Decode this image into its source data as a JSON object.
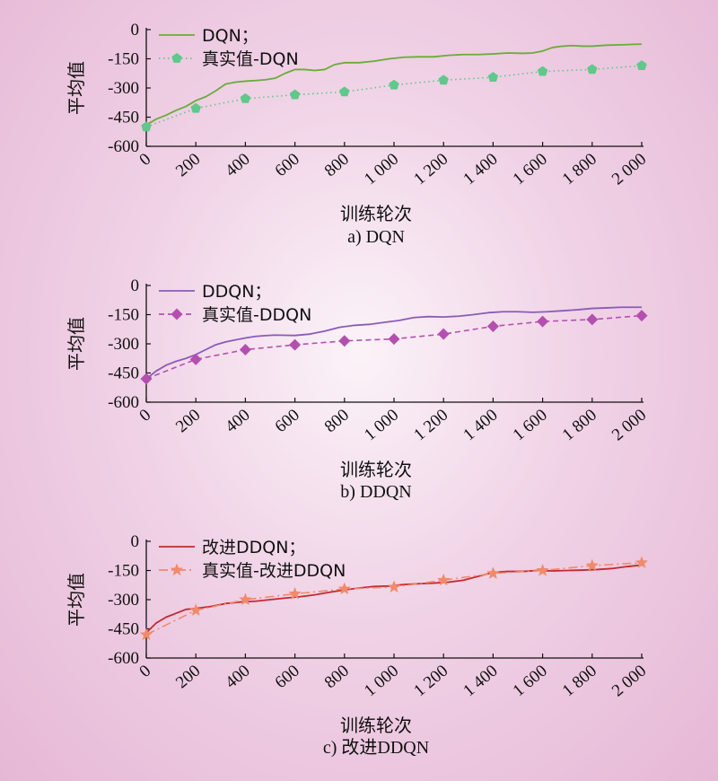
{
  "chart_data": [
    {
      "type": "line",
      "caption": "a) DQN",
      "xlabel": "训练轮次",
      "ylabel": "平均值",
      "xlim": [
        0,
        2000
      ],
      "ylim": [
        -600,
        0
      ],
      "xticks": [
        0,
        200,
        400,
        600,
        800,
        1000,
        1200,
        1400,
        1600,
        1800,
        2000
      ],
      "xtick_labels": [
        "0",
        "200",
        "400",
        "600",
        "800",
        "1 000",
        "1 200",
        "1 400",
        "1 600",
        "1 800",
        "2 000"
      ],
      "yticks": [
        0,
        -150,
        -300,
        -450,
        -600
      ],
      "ytick_labels": [
        "0",
        "-150",
        "-300",
        "-450",
        "-600"
      ],
      "legend_position": "top-left",
      "series": [
        {
          "name": "DQN；",
          "color": "#6aac38",
          "style": "solid",
          "marker": "none",
          "x": [
            0,
            40,
            80,
            120,
            160,
            200,
            240,
            280,
            320,
            360,
            400,
            440,
            480,
            520,
            560,
            600,
            640,
            680,
            720,
            760,
            800,
            860,
            920,
            980,
            1040,
            1100,
            1160,
            1220,
            1280,
            1340,
            1400,
            1460,
            1520,
            1560,
            1600,
            1640,
            1680,
            1720,
            1760,
            1800,
            1860,
            1920,
            1980,
            2000
          ],
          "y": [
            -490,
            -460,
            -440,
            -415,
            -395,
            -365,
            -345,
            -315,
            -280,
            -270,
            -265,
            -262,
            -258,
            -250,
            -225,
            -205,
            -205,
            -210,
            -205,
            -180,
            -170,
            -170,
            -162,
            -150,
            -142,
            -140,
            -140,
            -132,
            -128,
            -128,
            -125,
            -120,
            -122,
            -120,
            -110,
            -92,
            -85,
            -82,
            -85,
            -85,
            -80,
            -78,
            -75,
            -75
          ]
        },
        {
          "name": "真实值-DQN",
          "color": "#5fc88a",
          "style": "dotted",
          "marker": "pentagon",
          "x": [
            0,
            200,
            400,
            600,
            800,
            1000,
            1200,
            1400,
            1600,
            1800,
            2000
          ],
          "y": [
            -500,
            -405,
            -355,
            -335,
            -320,
            -285,
            -260,
            -245,
            -215,
            -205,
            -185
          ]
        }
      ]
    },
    {
      "type": "line",
      "caption": "b) DDQN",
      "xlabel": "训练轮次",
      "ylabel": "平均值",
      "xlim": [
        0,
        2000
      ],
      "ylim": [
        -600,
        0
      ],
      "xticks": [
        0,
        200,
        400,
        600,
        800,
        1000,
        1200,
        1400,
        1600,
        1800,
        2000
      ],
      "xtick_labels": [
        "0",
        "200",
        "400",
        "600",
        "800",
        "1 000",
        "1 200",
        "1 400",
        "1 600",
        "1 800",
        "2 000"
      ],
      "yticks": [
        0,
        -150,
        -300,
        -450,
        -600
      ],
      "ytick_labels": [
        "0",
        "-150",
        "-300",
        "-450",
        "-600"
      ],
      "legend_position": "top-left",
      "series": [
        {
          "name": "DDQN；",
          "color": "#8a5cb8",
          "style": "solid",
          "marker": "none",
          "x": [
            0,
            40,
            80,
            120,
            160,
            200,
            240,
            280,
            320,
            360,
            400,
            440,
            480,
            520,
            560,
            600,
            660,
            720,
            780,
            840,
            900,
            960,
            1020,
            1080,
            1140,
            1200,
            1260,
            1320,
            1380,
            1440,
            1500,
            1560,
            1620,
            1680,
            1740,
            1800,
            1860,
            1920,
            1980,
            2000
          ],
          "y": [
            -480,
            -440,
            -410,
            -390,
            -375,
            -355,
            -330,
            -305,
            -290,
            -280,
            -270,
            -262,
            -258,
            -255,
            -256,
            -257,
            -250,
            -235,
            -215,
            -205,
            -200,
            -190,
            -180,
            -165,
            -160,
            -162,
            -158,
            -150,
            -140,
            -135,
            -135,
            -138,
            -135,
            -130,
            -125,
            -118,
            -115,
            -112,
            -112,
            -112
          ]
        },
        {
          "name": "真实值-DDQN",
          "color": "#b44fb0",
          "style": "dashed",
          "marker": "diamond",
          "x": [
            0,
            200,
            400,
            600,
            800,
            1000,
            1200,
            1400,
            1600,
            1800,
            2000
          ],
          "y": [
            -480,
            -380,
            -330,
            -305,
            -285,
            -275,
            -250,
            -210,
            -185,
            -175,
            -155
          ]
        }
      ]
    },
    {
      "type": "line",
      "caption": "c) 改进DDQN",
      "xlabel": "训练轮次",
      "ylabel": "平均值",
      "xlim": [
        0,
        2000
      ],
      "ylim": [
        -600,
        0
      ],
      "xticks": [
        0,
        200,
        400,
        600,
        800,
        1000,
        1200,
        1400,
        1600,
        1800,
        2000
      ],
      "xtick_labels": [
        "0",
        "200",
        "400",
        "600",
        "800",
        "1 000",
        "1 200",
        "1 400",
        "1 600",
        "1 800",
        "2 000"
      ],
      "yticks": [
        0,
        -150,
        -300,
        -450,
        -600
      ],
      "ytick_labels": [
        "0",
        "-150",
        "-300",
        "-450",
        "-600"
      ],
      "legend_position": "top-left",
      "series": [
        {
          "name": "改进DDQN；",
          "color": "#c62830",
          "style": "solid",
          "marker": "none",
          "x": [
            0,
            40,
            80,
            120,
            160,
            200,
            260,
            320,
            380,
            440,
            500,
            560,
            620,
            680,
            740,
            800,
            860,
            920,
            980,
            1040,
            1100,
            1160,
            1220,
            1280,
            1340,
            1400,
            1460,
            1520,
            1580,
            1640,
            1700,
            1760,
            1820,
            1880,
            1940,
            2000
          ],
          "y": [
            -470,
            -420,
            -390,
            -370,
            -350,
            -345,
            -335,
            -320,
            -312,
            -308,
            -300,
            -292,
            -285,
            -275,
            -262,
            -250,
            -240,
            -232,
            -230,
            -222,
            -218,
            -215,
            -210,
            -200,
            -180,
            -160,
            -155,
            -155,
            -150,
            -152,
            -150,
            -148,
            -145,
            -140,
            -130,
            -122
          ]
        },
        {
          "name": "真实值-改进DDQN",
          "color": "#f08a6a",
          "style": "dashdot",
          "marker": "star",
          "x": [
            0,
            200,
            400,
            600,
            800,
            1000,
            1200,
            1400,
            1600,
            1800,
            2000
          ],
          "y": [
            -480,
            -355,
            -300,
            -270,
            -245,
            -235,
            -200,
            -165,
            -150,
            -125,
            -110
          ]
        }
      ]
    }
  ]
}
